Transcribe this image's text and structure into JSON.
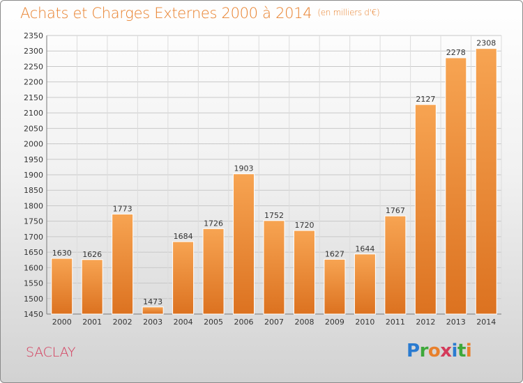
{
  "title": "Achats et Charges Externes 2000 à 2014",
  "subtitle": "(en milliers d'€)",
  "location": "SACLAY",
  "logo_text": "Proxiti",
  "colors": {
    "bar": "#f0963f",
    "bar_dark": "#d86e1c",
    "title": "#e8802c",
    "location": "#d43a5a"
  },
  "chart_data": {
    "type": "bar",
    "categories": [
      "2000",
      "2001",
      "2002",
      "2003",
      "2004",
      "2005",
      "2006",
      "2007",
      "2008",
      "2009",
      "2010",
      "2011",
      "2012",
      "2013",
      "2014"
    ],
    "values": [
      1630,
      1626,
      1773,
      1473,
      1684,
      1726,
      1903,
      1752,
      1720,
      1627,
      1644,
      1767,
      2127,
      2278,
      2308
    ],
    "ylim": [
      1450,
      2350
    ],
    "yticks": [
      1450,
      1500,
      1550,
      1600,
      1650,
      1700,
      1750,
      1800,
      1850,
      1900,
      1950,
      2000,
      2050,
      2100,
      2150,
      2200,
      2250,
      2300,
      2350
    ],
    "grid": true
  }
}
